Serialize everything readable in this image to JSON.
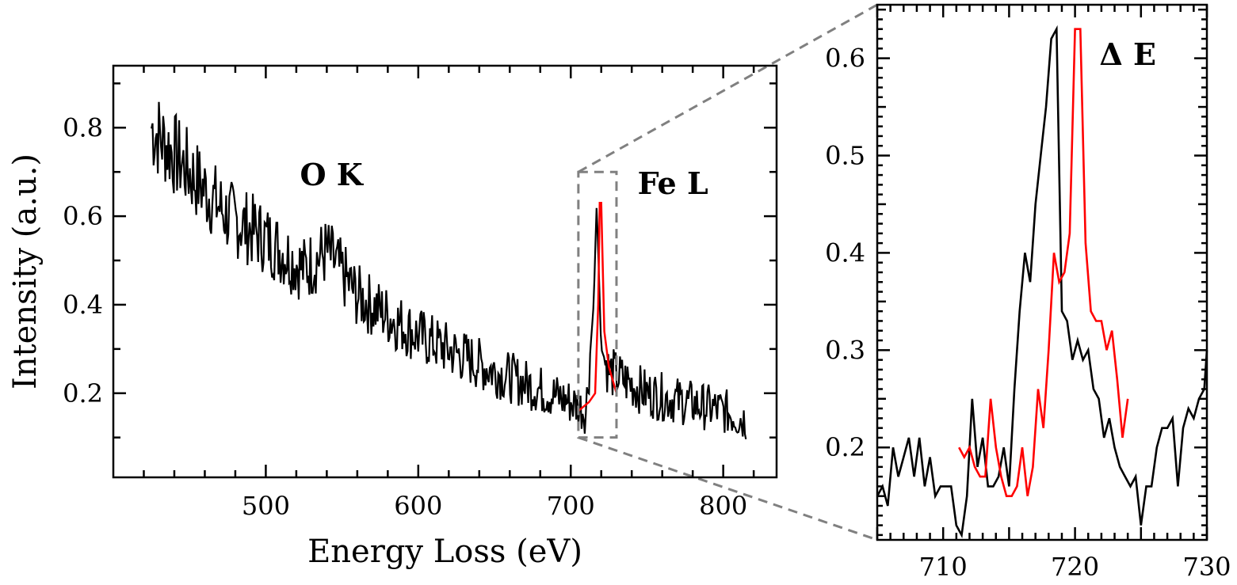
{
  "chart_data": [
    {
      "type": "line",
      "xlabel": "Energy Loss (eV)",
      "ylabel": "Intensity (a.u.)",
      "xlim": [
        400,
        835
      ],
      "ylim": [
        0.01,
        0.94
      ],
      "x_ticks": [
        "500",
        "600",
        "700",
        "800"
      ],
      "y_ticks": [
        "0.2",
        "0.4",
        "0.6",
        "0.8"
      ],
      "annotations": [
        "O K",
        "Fe L"
      ],
      "zoom_box": {
        "x": [
          705,
          730
        ],
        "y": [
          0.1,
          0.7
        ]
      },
      "series": [
        {
          "color": "#000000",
          "x": [
            425,
            450,
            475,
            500,
            525,
            540,
            560,
            600,
            650,
            700,
            710,
            715,
            717,
            720,
            725,
            750,
            800,
            815
          ],
          "y": [
            0.8,
            0.7,
            0.6,
            0.55,
            0.48,
            0.52,
            0.42,
            0.33,
            0.25,
            0.18,
            0.16,
            0.4,
            0.63,
            0.3,
            0.25,
            0.2,
            0.16,
            0.14
          ]
        },
        {
          "color": "#ff0000",
          "x": [
            705,
            712,
            716,
            718,
            719,
            720,
            722,
            725,
            730
          ],
          "y": [
            0.16,
            0.18,
            0.2,
            0.4,
            0.63,
            0.63,
            0.34,
            0.26,
            0.2
          ]
        }
      ]
    },
    {
      "type": "line",
      "xlim": [
        705,
        730
      ],
      "ylim": [
        0.105,
        0.655
      ],
      "x_ticks": [
        "710",
        "720",
        "730"
      ],
      "y_ticks": [
        "0.2",
        "0.3",
        "0.4",
        "0.5",
        "0.6"
      ],
      "annotations": [
        "Δ E"
      ],
      "series": [
        {
          "color": "#000000",
          "x": [
            705,
            705.4,
            705.8,
            706.2,
            706.6,
            707,
            707.4,
            707.8,
            708.2,
            708.6,
            709,
            709.4,
            709.8,
            710.2,
            710.6,
            711,
            711.4,
            711.8,
            712.2,
            712.6,
            713,
            713.4,
            713.8,
            714.2,
            714.6,
            715,
            715.4,
            715.8,
            716.2,
            716.6,
            717,
            717.4,
            717.8,
            718.2,
            718.6,
            719,
            719.4,
            719.8,
            720.2,
            720.6,
            721,
            721.4,
            721.8,
            722.2,
            722.6,
            723,
            723.4,
            723.8,
            724.2,
            724.6,
            725,
            725.4,
            725.8,
            726.2,
            726.6,
            727,
            727.4,
            727.8,
            728.2,
            728.6,
            729,
            729.4,
            729.8,
            730
          ],
          "y": [
            0.15,
            0.16,
            0.14,
            0.2,
            0.17,
            0.19,
            0.21,
            0.17,
            0.21,
            0.16,
            0.19,
            0.15,
            0.16,
            0.16,
            0.16,
            0.12,
            0.11,
            0.15,
            0.25,
            0.18,
            0.21,
            0.16,
            0.16,
            0.17,
            0.2,
            0.16,
            0.26,
            0.34,
            0.4,
            0.37,
            0.45,
            0.5,
            0.55,
            0.62,
            0.63,
            0.34,
            0.33,
            0.29,
            0.31,
            0.29,
            0.3,
            0.26,
            0.25,
            0.21,
            0.23,
            0.2,
            0.18,
            0.17,
            0.16,
            0.17,
            0.12,
            0.16,
            0.16,
            0.2,
            0.22,
            0.22,
            0.23,
            0.16,
            0.22,
            0.24,
            0.23,
            0.25,
            0.26,
            0.3
          ]
        },
        {
          "color": "#ff0000",
          "x": [
            711.2,
            711.6,
            712,
            712.4,
            712.8,
            713.2,
            713.6,
            714,
            714.4,
            714.8,
            715.2,
            715.6,
            716,
            716.4,
            716.8,
            717.2,
            717.6,
            718,
            718.4,
            718.8,
            719.2,
            719.6,
            720,
            720.4,
            720.8,
            721.2,
            721.6,
            722,
            722.4,
            722.8,
            723.2,
            723.6,
            724
          ],
          "y": [
            0.2,
            0.19,
            0.2,
            0.18,
            0.17,
            0.17,
            0.25,
            0.2,
            0.17,
            0.15,
            0.15,
            0.16,
            0.2,
            0.15,
            0.18,
            0.26,
            0.22,
            0.3,
            0.4,
            0.37,
            0.38,
            0.42,
            0.63,
            0.63,
            0.41,
            0.34,
            0.33,
            0.33,
            0.3,
            0.32,
            0.27,
            0.21,
            0.25
          ]
        }
      ]
    }
  ]
}
